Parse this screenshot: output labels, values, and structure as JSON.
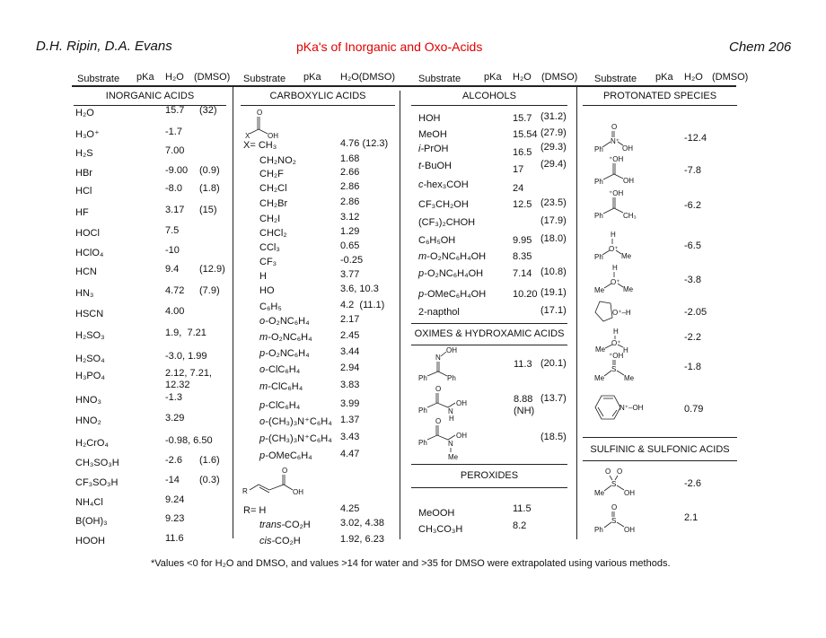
{
  "header": {
    "authors": "D.H. Ripin, D.A. Evans",
    "title": "pKa's of Inorganic and Oxo-Acids",
    "course": "Chem 206",
    "title_color": "#e00000"
  },
  "columns": [
    {
      "substrate": "Substrate",
      "pka": "pKa",
      "h2o": "H₂O",
      "dmso": "(DMSO)"
    },
    {
      "substrate": "Substrate",
      "pka": "pKa",
      "h2o": "H₂O(DMSO)",
      "dmso": ""
    },
    {
      "substrate": "Substrate",
      "pka": "pKa",
      "h2o": "H₂O",
      "dmso": "(DMSO)"
    },
    {
      "substrate": "Substrate",
      "pka": "pKa",
      "h2o": "H₂O",
      "dmso": "(DMSO)"
    }
  ],
  "sections": {
    "inorganic": "INORGANIC ACIDS",
    "carboxylic": "CARBOXYLIC ACIDS",
    "alcohols": "ALCOHOLS",
    "protonated": "PROTONATED SPECIES",
    "oximes": "OXIMES & HYDROXAMIC ACIDS",
    "peroxides": "PEROXIDES",
    "sulfonic": "SULFINIC & SULFONIC ACIDS"
  },
  "inorganic": [
    {
      "substrate": "H₂O",
      "pka": "15.7",
      "dmso": "(32)"
    },
    {
      "substrate": "H₃O⁺",
      "pka": "-1.7",
      "dmso": ""
    },
    {
      "substrate": "H₂S",
      "pka": "7.00",
      "dmso": ""
    },
    {
      "substrate": "HBr",
      "pka": "-9.00",
      "dmso": "(0.9)"
    },
    {
      "substrate": "HCl",
      "pka": "-8.0",
      "dmso": "(1.8)"
    },
    {
      "substrate": "HF",
      "pka": "3.17",
      "dmso": "(15)"
    },
    {
      "substrate": "HOCl",
      "pka": "7.5",
      "dmso": ""
    },
    {
      "substrate": "HClO₄",
      "pka": "-10",
      "dmso": ""
    },
    {
      "substrate": "HCN",
      "pka": "9.4",
      "dmso": "(12.9)"
    },
    {
      "substrate": "HN₃",
      "pka": "4.72",
      "dmso": "(7.9)"
    },
    {
      "substrate": "HSCN",
      "pka": "4.00",
      "dmso": ""
    },
    {
      "substrate": "H₂SO₃",
      "pka": "1.9,  7.21",
      "dmso": ""
    },
    {
      "substrate": "H₂SO₄",
      "pka": "-3.0, 1.99",
      "dmso": ""
    },
    {
      "substrate": "H₃PO₄",
      "pka": "2.12, 7.21,\n12.32",
      "dmso": ""
    },
    {
      "substrate": "HNO₃",
      "pka": "-1.3",
      "dmso": ""
    },
    {
      "substrate": "HNO₂",
      "pka": "3.29",
      "dmso": ""
    },
    {
      "substrate": "H₂CrO₄",
      "pka": "-0.98, 6.50",
      "dmso": ""
    },
    {
      "substrate": "CH₃SO₃H",
      "pka": "-2.6",
      "dmso": "(1.6)"
    },
    {
      "substrate": "CF₃SO₃H",
      "pka": "-14",
      "dmso": "(0.3)"
    },
    {
      "substrate": "NH₄Cl",
      "pka": "9.24",
      "dmso": ""
    },
    {
      "substrate": "B(OH)₃",
      "pka": "9.23",
      "dmso": ""
    },
    {
      "substrate": "HOOH",
      "pka": "11.6",
      "dmso": ""
    }
  ],
  "carboxylic": [
    {
      "prefix": "",
      "substrate": "X= CH₃",
      "pka": "4.76 (12.3)"
    },
    {
      "prefix": "",
      "substrate": "CH₂NO₂",
      "pka": "1.68"
    },
    {
      "prefix": "",
      "substrate": "CH₂F",
      "pka": "2.66"
    },
    {
      "prefix": "",
      "substrate": "CH₂Cl",
      "pka": "2.86"
    },
    {
      "prefix": "",
      "substrate": "CH₂Br",
      "pka": "2.86"
    },
    {
      "prefix": "",
      "substrate": "CH₂I",
      "pka": "3.12"
    },
    {
      "prefix": "",
      "substrate": "CHCl₂",
      "pka": "1.29"
    },
    {
      "prefix": "",
      "substrate": "CCl₃",
      "pka": "0.65"
    },
    {
      "prefix": "",
      "substrate": "CF₃",
      "pka": "-0.25"
    },
    {
      "prefix": "",
      "substrate": "H",
      "pka": "3.77"
    },
    {
      "prefix": "",
      "substrate": "HO",
      "pka": "3.6, 10.3"
    },
    {
      "prefix": "",
      "substrate": "C₆H₅",
      "pka": "4.2  (11.1)"
    },
    {
      "prefix": "o-",
      "substrate": "O₂NC₆H₄",
      "pka": "2.17"
    },
    {
      "prefix": "m-",
      "substrate": "O₂NC₆H₄",
      "pka": "2.45"
    },
    {
      "prefix": "p-",
      "substrate": "O₂NC₆H₄",
      "pka": "3.44"
    },
    {
      "prefix": "o-",
      "substrate": "ClC₆H₄",
      "pka": "2.94"
    },
    {
      "prefix": "m-",
      "substrate": "ClC₆H₄",
      "pka": "3.83"
    },
    {
      "prefix": "p-",
      "substrate": "ClC₆H₄",
      "pka": "3.99"
    },
    {
      "prefix": "o-",
      "substrate": "(CH₃)₃N⁺C₆H₄",
      "pka": "1.37"
    },
    {
      "prefix": "p-",
      "substrate": "(CH₃)₃N⁺C₆H₄",
      "pka": "3.43"
    },
    {
      "prefix": "p-",
      "substrate": "OMeC₆H₄",
      "pka": "4.47"
    },
    {
      "prefix": "",
      "substrate": "R= H",
      "pka": "4.25"
    },
    {
      "prefix": "trans-",
      "substrate": "CO₂H",
      "pka": "3.02, 4.38"
    },
    {
      "prefix": "cis-",
      "substrate": "CO₂H",
      "pka": "1.92, 6.23"
    }
  ],
  "alcohols": [
    {
      "prefix": "",
      "substrate": "HOH",
      "pka": "15.7",
      "dmso": "(31.2)"
    },
    {
      "prefix": "",
      "substrate": "MeOH",
      "pka": "15.54",
      "dmso": "(27.9)"
    },
    {
      "prefix": "i-",
      "substrate": "PrOH",
      "pka": "16.5",
      "dmso": "(29.3)"
    },
    {
      "prefix": "t-",
      "substrate": "BuOH",
      "pka": "17",
      "dmso": "(29.4)"
    },
    {
      "prefix": "c-",
      "substrate": "hex₃COH",
      "pka": "24",
      "dmso": ""
    },
    {
      "prefix": "",
      "substrate": "CF₃CH₂OH",
      "pka": "12.5",
      "dmso": "(23.5)"
    },
    {
      "prefix": "",
      "substrate": "(CF₃)₂CHOH",
      "pka": "",
      "dmso": "(17.9)"
    },
    {
      "prefix": "",
      "substrate": "C₆H₅OH",
      "pka": "9.95",
      "dmso": "(18.0)"
    },
    {
      "prefix": "m-",
      "substrate": "O₂NC₆H₄OH",
      "pka": "8.35",
      "dmso": ""
    },
    {
      "prefix": "p-",
      "substrate": "O₂NC₆H₄OH",
      "pka": "7.14",
      "dmso": "(10.8)"
    },
    {
      "prefix": "p-",
      "substrate": "OMeC₆H₄OH",
      "pka": "10.20",
      "dmso": "(19.1)"
    },
    {
      "prefix": "",
      "substrate": "2-napthol",
      "pka": "",
      "dmso": "(17.1)"
    }
  ],
  "oximes": [
    {
      "pka": "11.3",
      "dmso": "(20.1)"
    },
    {
      "pka": "8.88\n(NH)",
      "dmso": "(13.7)"
    },
    {
      "pka": "",
      "dmso": "(18.5)"
    }
  ],
  "peroxides": [
    {
      "substrate": "MeOOH",
      "pka": "11.5"
    },
    {
      "substrate": "CH₃CO₃H",
      "pka": "8.2"
    }
  ],
  "protonated": [
    {
      "pka": "-12.4"
    },
    {
      "pka": "-7.8"
    },
    {
      "pka": "-6.2"
    },
    {
      "pka": "-6.5"
    },
    {
      "pka": "-3.8"
    },
    {
      "pka": "-2.05"
    },
    {
      "pka": "-2.2"
    },
    {
      "pka": "-1.8"
    },
    {
      "pka": "0.79"
    }
  ],
  "sulfonic": [
    {
      "pka": "-2.6"
    },
    {
      "pka": "2.1"
    }
  ],
  "structures": {
    "carboxylic_core": [
      "O",
      "X",
      "OH"
    ],
    "acrylic": [
      "O",
      "R",
      "OH"
    ],
    "nitro": [
      "O",
      "N⁺",
      "Ph",
      "OH"
    ],
    "prot_acid": [
      "⁺OH",
      "Ph",
      "OH"
    ],
    "prot_ketone": [
      "⁺OH",
      "Ph",
      "CH₃"
    ],
    "prot_ether_ph": [
      "H",
      "O⁺",
      "Ph",
      "Me"
    ],
    "prot_ether_me": [
      "H",
      "O⁺",
      "Me",
      "Me"
    ],
    "prot_thf": [
      "O⁺–H"
    ],
    "prot_meoh": [
      "H",
      "O⁺",
      "Me",
      "H"
    ],
    "prot_dmso": [
      "⁺OH",
      "S",
      "Me",
      "Me"
    ],
    "pyridine_n_oxide": [
      "N⁺–OH"
    ],
    "oxime": [
      "N",
      "OH",
      "Ph",
      "Ph"
    ],
    "hydroxamic": [
      "O",
      "N",
      "OH",
      "Ph",
      "H"
    ],
    "hydroxamic_me": [
      "O",
      "N",
      "OH",
      "Ph",
      "Me"
    ],
    "sulfonic": [
      "O",
      "O",
      "S",
      "Me",
      "OH"
    ],
    "sulfinic": [
      "O",
      "S",
      "Ph",
      "OH"
    ]
  },
  "footnote": "*Values <0 for H₂O and DMSO, and values >14 for water and >35 for DMSO were extrapolated using various methods."
}
